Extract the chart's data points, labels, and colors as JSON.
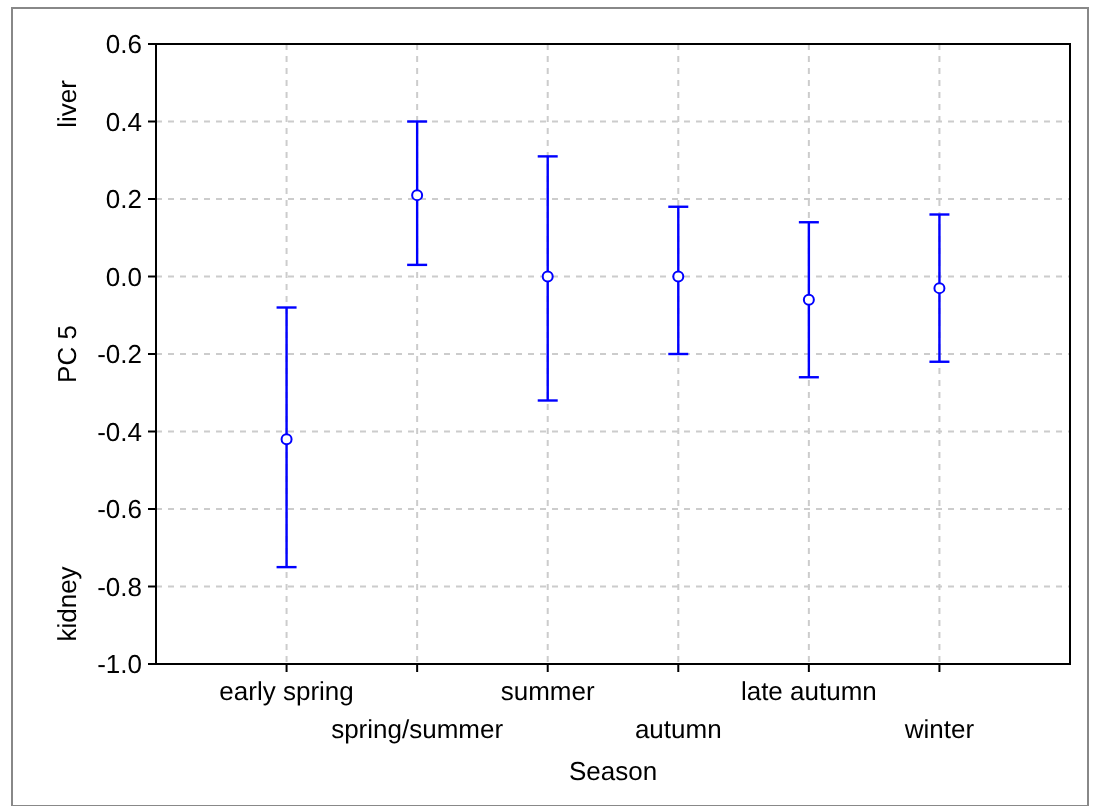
{
  "chart_data": {
    "type": "scatter",
    "xlabel": "Season",
    "ylabel": "PC 5",
    "categories": [
      "early spring",
      "spring/summer",
      "summer",
      "autumn",
      "late autumn",
      "winter"
    ],
    "series": [
      {
        "color": "#0000ff",
        "values": [
          -0.42,
          0.21,
          0.0,
          0.0,
          -0.06,
          -0.03
        ],
        "errors": [
          [
            -0.75,
            -0.08
          ],
          [
            0.03,
            0.4
          ],
          [
            -0.32,
            0.31
          ],
          [
            -0.2,
            0.18
          ],
          [
            -0.26,
            0.14
          ],
          [
            -0.22,
            0.16
          ]
        ]
      }
    ],
    "ylim": [
      -1.0,
      0.6
    ],
    "yticks": [
      {
        "value": -1.0,
        "label": "-1.0"
      },
      {
        "value": -0.8,
        "label": "-0.8"
      },
      {
        "value": -0.6,
        "label": "-0.6"
      },
      {
        "value": -0.4,
        "label": "-0.4"
      },
      {
        "value": -0.2,
        "label": "-0.2"
      },
      {
        "value": 0,
        "label": "0.0"
      },
      {
        "value": 0.2,
        "label": "0.2"
      },
      {
        "value": 0.4,
        "label": "0.4"
      },
      {
        "value": 0.6,
        "label": "0.6"
      }
    ],
    "grid": true,
    "marker": "circle",
    "annotations": [
      "liver",
      "kidney"
    ]
  }
}
